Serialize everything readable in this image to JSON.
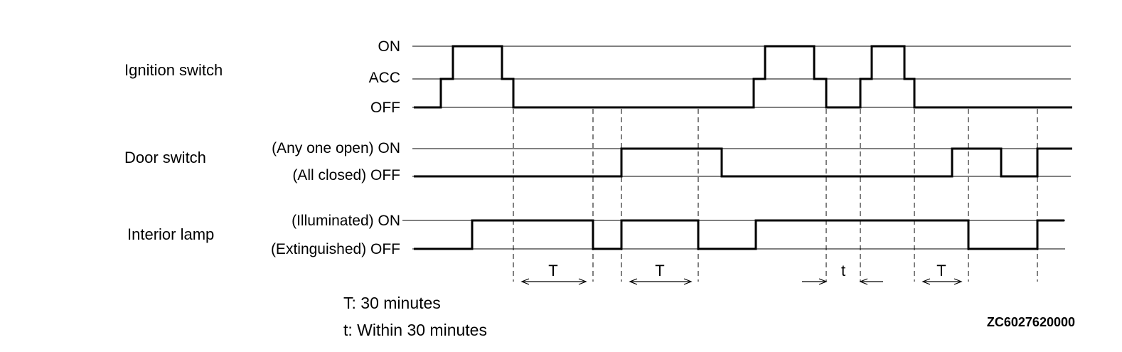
{
  "signals": [
    {
      "name": "Ignition switch",
      "levels": [
        "ON",
        "ACC",
        "OFF"
      ],
      "transitions": [
        [
          0,
          "OFF"
        ],
        [
          38,
          "ACC"
        ],
        [
          55,
          "ON"
        ],
        [
          124,
          "ACC"
        ],
        [
          140,
          "OFF"
        ],
        [
          478,
          "ACC"
        ],
        [
          494,
          "ON"
        ],
        [
          563,
          "ACC"
        ],
        [
          580,
          "OFF"
        ],
        [
          628,
          "ACC"
        ],
        [
          644,
          "ON"
        ],
        [
          690,
          "ACC"
        ],
        [
          704,
          "OFF"
        ],
        [
          926,
          "OFF"
        ]
      ]
    },
    {
      "name": "Door switch",
      "levels": [
        "(Any one open) ON",
        "(All closed) OFF"
      ],
      "transitions": [
        [
          0,
          "(All closed) OFF"
        ],
        [
          292,
          "(Any one open) ON"
        ],
        [
          433,
          "(All closed) OFF"
        ],
        [
          757,
          "(Any one open) ON"
        ],
        [
          826,
          "(All closed) OFF"
        ],
        [
          877,
          "(Any one open) ON"
        ],
        [
          926,
          "(Any one open) ON"
        ]
      ]
    },
    {
      "name": "Interior lamp",
      "levels": [
        "(Illuminated) ON",
        "(Extinguished) OFF"
      ],
      "transitions": [
        [
          0,
          "(Extinguished) OFF"
        ],
        [
          82,
          "(Illuminated) ON"
        ],
        [
          252,
          "(Extinguished) OFF"
        ],
        [
          292,
          "(Illuminated) ON"
        ],
        [
          400,
          "(Extinguished) OFF"
        ],
        [
          481,
          "(Illuminated) ON"
        ],
        [
          780,
          "(Extinguished) OFF"
        ],
        [
          877,
          "(Illuminated) ON"
        ],
        [
          915,
          "(Illuminated) ON"
        ]
      ]
    }
  ],
  "markers": [
    140,
    252,
    292,
    400,
    580,
    628,
    704,
    780,
    877
  ],
  "intervals": [
    {
      "label": "T",
      "from": 140,
      "to": 252
    },
    {
      "label": "T",
      "from": 292,
      "to": 400
    },
    {
      "label": "t",
      "from": 580,
      "to": 628
    },
    {
      "label": "T",
      "from": 704,
      "to": 780
    }
  ],
  "notes": [
    "T: 30 minutes",
    "t: Within 30 minutes"
  ],
  "figure_code": "ZC6027620000"
}
